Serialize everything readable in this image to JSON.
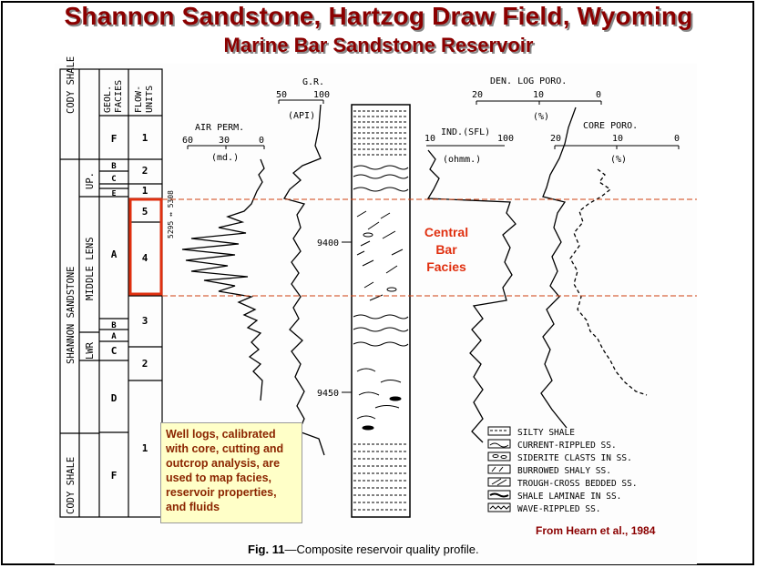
{
  "title": "Shannon Sandstone, Hartzog Draw Field, Wyoming",
  "subtitle": "Marine Bar Sandstone Reservoir",
  "columns": {
    "geol_facies": "GEOL. FACIES",
    "flow_units": "FLOW- UNITS",
    "air_perm": {
      "label": "AIR PERM.",
      "unit": "(md.)",
      "ticks": [
        "60",
        "30",
        "0"
      ]
    },
    "gr": {
      "label": "G.R.",
      "unit": "(API)",
      "ticks": [
        "50",
        "100"
      ]
    },
    "den_log_poro": {
      "label": "DEN. LOG PORO.",
      "unit": "(%)",
      "ticks": [
        "20",
        "10",
        "0"
      ]
    },
    "ind_sfl": {
      "label": "IND.(SFL)",
      "unit": "(ohmm.)",
      "ticks": [
        "10",
        "100"
      ]
    },
    "core_poro": {
      "label": "CORE PORO.",
      "unit": "(%)",
      "ticks": [
        "20",
        "10",
        "0"
      ]
    }
  },
  "strat": {
    "cody_shale_top": "CODY SHALE",
    "shannon_sandstone": "SHANNON SANDSTONE",
    "cody_shale_bottom": "CODY SHALE",
    "up": "UP.",
    "middle_lens": "MIDDLE LENS",
    "lwr": "LWR"
  },
  "facies_letters": {
    "f_top": "F",
    "b_top": "B",
    "c_top": "C",
    "e": "E",
    "a_mid": "A",
    "b_low": "B",
    "a_low": "A",
    "c_low": "C",
    "d": "D",
    "f_bot": "F"
  },
  "flow_unit_numbers": {
    "u1_top": "1",
    "u2_top": "2",
    "u1_e": "1",
    "u5": "5",
    "u4": "4",
    "u3": "3",
    "u2_low": "2",
    "u1_bot": "1"
  },
  "depths": {
    "d9400": "9400",
    "d9450": "9450"
  },
  "core_depth_note": "5295 ↔ 5308",
  "facies_annotation": {
    "line1": "Central",
    "line2": "Bar",
    "line3": "Facies"
  },
  "legend": [
    "SILTY SHALE",
    "CURRENT-RIPPLED SS.",
    "SIDERITE CLASTS IN SS.",
    "BURROWED SHALY SS.",
    "TROUGH-CROSS BEDDED SS.",
    "SHALE LAMINAE IN SS.",
    "WAVE-RIPPLED SS."
  ],
  "note_box": {
    "l1": "Well logs, calibrated",
    "l2": "with core, cutting and",
    "l3": "outcrop analysis, are",
    "l4": "used to map facies,",
    "l5": "reservoir properties,",
    "l6": "and fluids"
  },
  "source": "From Hearn et al., 1984",
  "caption": {
    "fig": "Fig. 11",
    "text": "—Composite reservoir quality profile."
  },
  "colors": {
    "title": "#8b0000",
    "highlight_box": "#e03010",
    "dashed_line": "#d04010",
    "note_bg": "#ffffc8"
  }
}
